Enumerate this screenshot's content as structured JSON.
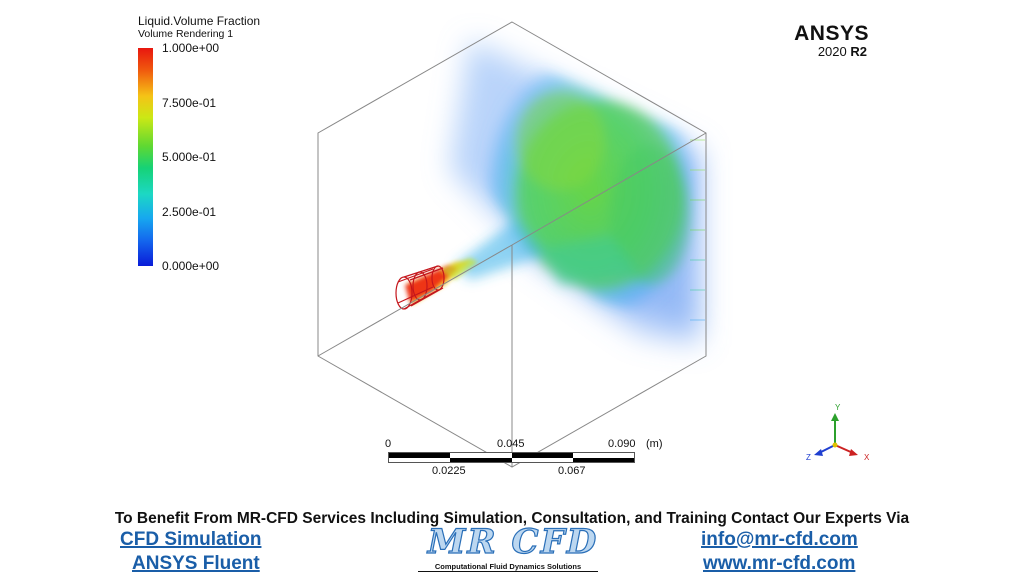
{
  "legend": {
    "title": "Liquid.Volume Fraction",
    "subtitle": "Volume Rendering 1",
    "ticks": [
      "1.000e+00",
      "7.500e-01",
      "5.000e-01",
      "2.500e-01",
      "0.000e+00"
    ]
  },
  "logo": {
    "name": "ANSYS",
    "version_year": "2020",
    "version_release": "R2"
  },
  "scale_bar": {
    "top_labels": [
      "0",
      "0.045",
      "0.090"
    ],
    "unit": "(m)",
    "bottom_labels": [
      "0.0225",
      "0.067"
    ]
  },
  "axes": {
    "y": "Y",
    "z": "Z",
    "x": "X"
  },
  "footer": {
    "headline": "To Benefit From MR-CFD Services Including Simulation, Consultation, and Training Contact Our Experts Via",
    "left_link_1": "CFD Simulation",
    "left_link_2": "ANSYS Fluent",
    "center_logo": "MR CFD",
    "center_logo_sub": "Computational Fluid Dynamics Solutions",
    "right_link_1": "info@mr-cfd.com",
    "right_link_2": "www.mr-cfd.com"
  },
  "colors": {
    "accent_link": "#1a5ea8",
    "scale_red": "#e8170f",
    "scale_blue": "#0a1bd8"
  }
}
